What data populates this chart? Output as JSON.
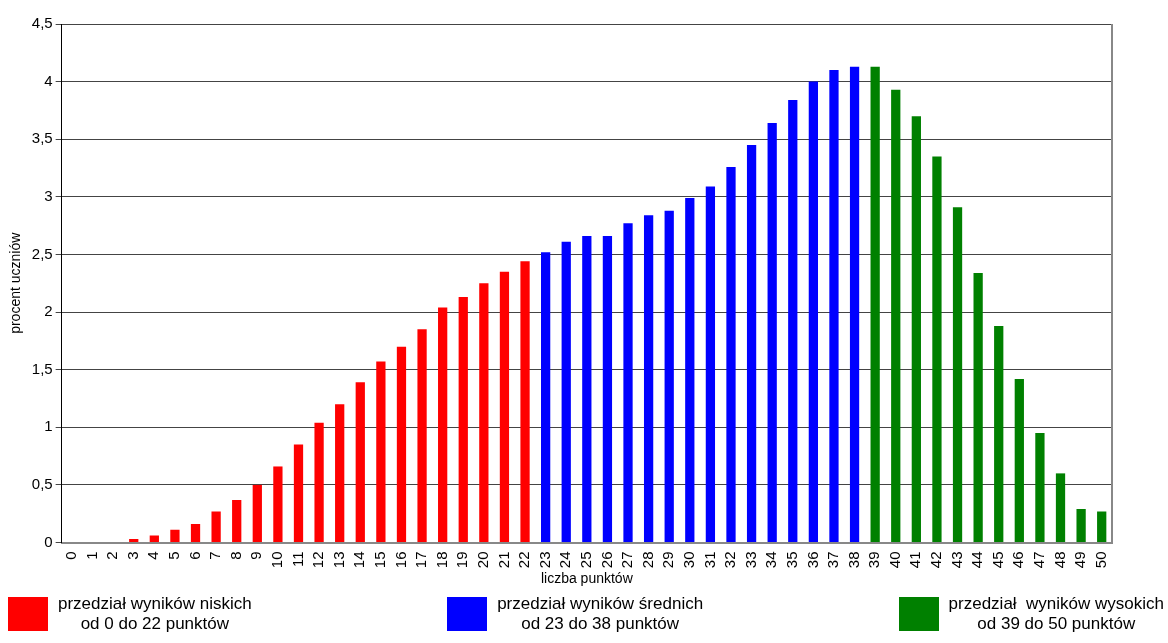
{
  "chart_data": {
    "type": "bar",
    "xlabel": "liczba punktów",
    "ylabel": "procent uczniów",
    "categories": [
      "0",
      "1",
      "2",
      "3",
      "4",
      "5",
      "6",
      "7",
      "8",
      "9",
      "10",
      "11",
      "12",
      "13",
      "14",
      "15",
      "16",
      "17",
      "18",
      "19",
      "20",
      "21",
      "22",
      "23",
      "24",
      "25",
      "26",
      "27",
      "28",
      "29",
      "30",
      "31",
      "32",
      "33",
      "34",
      "35",
      "36",
      "37",
      "38",
      "39",
      "40",
      "41",
      "42",
      "43",
      "44",
      "45",
      "46",
      "47",
      "48",
      "49",
      "50"
    ],
    "series": [
      {
        "name": "przedział wyników niskich\nod 0 do 22 punktów",
        "color": "#ff0000",
        "values": [
          0,
          0,
          0,
          0.03,
          0.06,
          0.11,
          0.16,
          0.27,
          0.37,
          0.5,
          0.66,
          0.85,
          1.04,
          1.2,
          1.39,
          1.57,
          1.7,
          1.85,
          2.04,
          2.13,
          2.25,
          2.35,
          2.44,
          null,
          null,
          null,
          null,
          null,
          null,
          null,
          null,
          null,
          null,
          null,
          null,
          null,
          null,
          null,
          null,
          null,
          null,
          null,
          null,
          null,
          null,
          null,
          null,
          null,
          null,
          null,
          null
        ]
      },
      {
        "name": "przedział wyników średnich\nod 23 do 38 punktów",
        "color": "#0000ff",
        "values": [
          null,
          null,
          null,
          null,
          null,
          null,
          null,
          null,
          null,
          null,
          null,
          null,
          null,
          null,
          null,
          null,
          null,
          null,
          null,
          null,
          null,
          null,
          null,
          2.52,
          2.61,
          2.66,
          2.66,
          2.77,
          2.84,
          2.88,
          2.99,
          3.09,
          3.26,
          3.45,
          3.64,
          3.84,
          4.0,
          4.1,
          4.13,
          null,
          null,
          null,
          null,
          null,
          null,
          null,
          null,
          null,
          null,
          null,
          null
        ]
      },
      {
        "name": "przedział  wyników wysokich\nod 39 do 50 punktów",
        "color": "#008000",
        "values": [
          null,
          null,
          null,
          null,
          null,
          null,
          null,
          null,
          null,
          null,
          null,
          null,
          null,
          null,
          null,
          null,
          null,
          null,
          null,
          null,
          null,
          null,
          null,
          null,
          null,
          null,
          null,
          null,
          null,
          null,
          null,
          null,
          null,
          null,
          null,
          null,
          null,
          null,
          null,
          4.13,
          3.93,
          3.7,
          3.35,
          2.91,
          2.34,
          1.88,
          1.42,
          0.95,
          0.6,
          0.29,
          0.27
        ]
      }
    ],
    "ylim": [
      0,
      4.5
    ],
    "yticks": [
      {
        "value": 0,
        "label": "0"
      },
      {
        "value": 0.5,
        "label": "0,5"
      },
      {
        "value": 1,
        "label": "1"
      },
      {
        "value": 1.5,
        "label": "1,5"
      },
      {
        "value": 2,
        "label": "2"
      },
      {
        "value": 2.5,
        "label": "2,5"
      },
      {
        "value": 3,
        "label": "3"
      },
      {
        "value": 3.5,
        "label": "3,5"
      },
      {
        "value": 4,
        "label": "4"
      },
      {
        "value": 4.5,
        "label": "4,5"
      }
    ],
    "grid": "y",
    "legend": "bottom"
  }
}
